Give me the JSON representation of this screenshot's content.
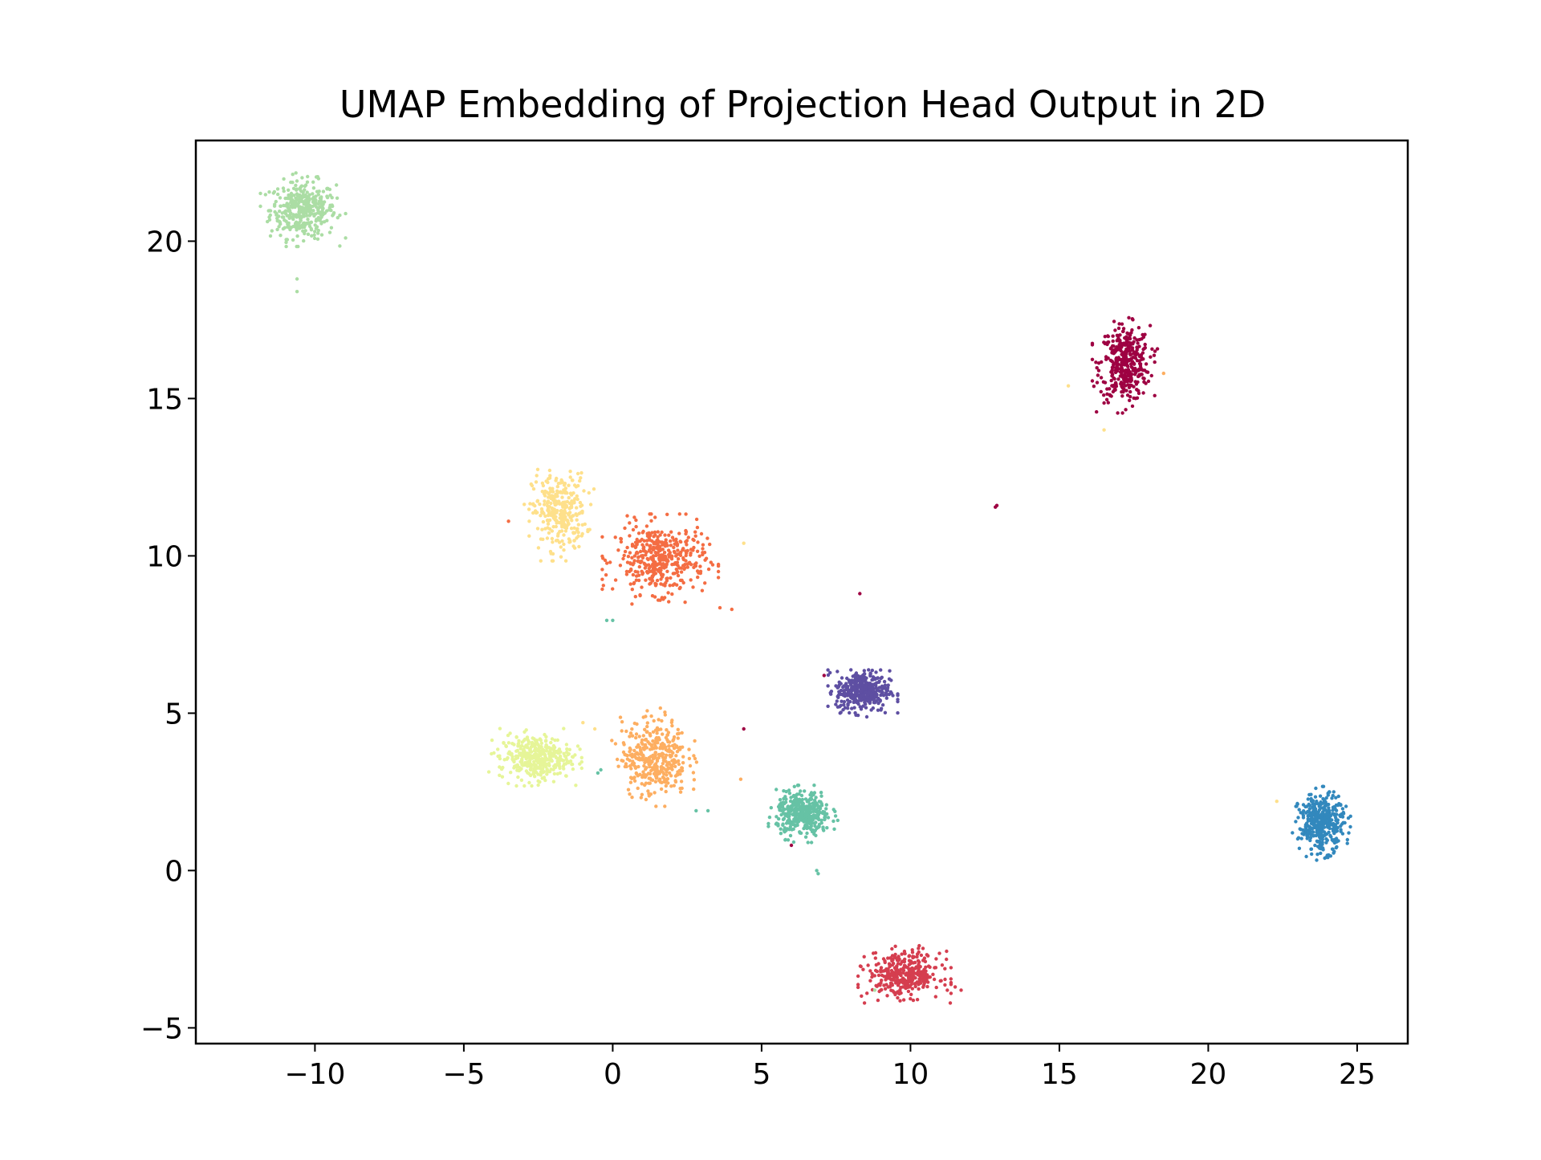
{
  "chart_data": {
    "type": "scatter",
    "title": "UMAP Embedding of Projection Head Output in 2D",
    "xlabel": "",
    "ylabel": "",
    "xlim": [
      -14,
      26.7
    ],
    "ylim": [
      -5.5,
      23.2
    ],
    "xticks": [
      -10,
      -5,
      0,
      5,
      10,
      15,
      20,
      25
    ],
    "yticks": [
      -5,
      0,
      5,
      10,
      15,
      20
    ],
    "xtick_labels": [
      "−10",
      "−5",
      "0",
      "5",
      "10",
      "15",
      "20",
      "25"
    ],
    "ytick_labels": [
      "−5",
      "0",
      "5",
      "10",
      "15",
      "20"
    ],
    "grid": false,
    "legend": "none",
    "clusters": [
      {
        "color": "#abdda4",
        "center": [
          -10.4,
          21.0
        ],
        "spread": [
          0.55,
          0.45
        ],
        "n": 380
      },
      {
        "color": "#9e0142",
        "center": [
          17.2,
          16.1
        ],
        "spread": [
          0.42,
          0.6
        ],
        "n": 380
      },
      {
        "color": "#fee08b",
        "center": [
          -1.8,
          11.4
        ],
        "spread": [
          0.45,
          0.6
        ],
        "n": 300
      },
      {
        "color": "#f46d43",
        "center": [
          1.6,
          9.9
        ],
        "spread": [
          0.75,
          0.55
        ],
        "n": 420
      },
      {
        "color": "#5e4fa2",
        "center": [
          8.4,
          5.7
        ],
        "spread": [
          0.45,
          0.32
        ],
        "n": 380
      },
      {
        "color": "#e6f598",
        "center": [
          -2.6,
          3.6
        ],
        "spread": [
          0.6,
          0.35
        ],
        "n": 380
      },
      {
        "color": "#fdae61",
        "center": [
          1.4,
          3.6
        ],
        "spread": [
          0.55,
          0.6
        ],
        "n": 380
      },
      {
        "color": "#66c2a5",
        "center": [
          6.4,
          1.8
        ],
        "spread": [
          0.45,
          0.35
        ],
        "n": 380
      },
      {
        "color": "#d53e4f",
        "center": [
          9.8,
          -3.3
        ],
        "spread": [
          0.6,
          0.35
        ],
        "n": 360
      },
      {
        "color": "#3288bd",
        "center": [
          23.8,
          1.5
        ],
        "spread": [
          0.38,
          0.45
        ],
        "n": 380
      }
    ],
    "outliers": [
      {
        "x": 12.9,
        "y": 11.6,
        "color": "#9e0142"
      },
      {
        "x": 12.85,
        "y": 11.55,
        "color": "#9e0142"
      },
      {
        "x": 8.3,
        "y": 8.8,
        "color": "#9e0142"
      },
      {
        "x": 15.3,
        "y": 15.4,
        "color": "#fee08b"
      },
      {
        "x": 16.5,
        "y": 14.0,
        "color": "#fee08b"
      },
      {
        "x": 22.3,
        "y": 2.2,
        "color": "#fee08b"
      },
      {
        "x": 4.4,
        "y": 10.4,
        "color": "#fee08b"
      },
      {
        "x": 4.0,
        "y": 8.3,
        "color": "#f46d43"
      },
      {
        "x": 3.6,
        "y": 8.35,
        "color": "#f46d43"
      },
      {
        "x": 4.4,
        "y": 4.5,
        "color": "#9e0142"
      },
      {
        "x": 2.8,
        "y": 1.9,
        "color": "#66c2a5"
      },
      {
        "x": 3.2,
        "y": 1.9,
        "color": "#66c2a5"
      },
      {
        "x": 0.0,
        "y": 7.95,
        "color": "#66c2a5"
      },
      {
        "x": -0.2,
        "y": 7.95,
        "color": "#66c2a5"
      },
      {
        "x": -0.4,
        "y": 3.2,
        "color": "#66c2a5"
      },
      {
        "x": -0.5,
        "y": 3.1,
        "color": "#66c2a5"
      },
      {
        "x": -3.5,
        "y": 11.1,
        "color": "#f46d43"
      },
      {
        "x": -1.0,
        "y": 4.7,
        "color": "#fee08b"
      },
      {
        "x": -0.6,
        "y": 4.5,
        "color": "#fee08b"
      },
      {
        "x": 6.9,
        "y": -0.1,
        "color": "#66c2a5"
      },
      {
        "x": 6.85,
        "y": 0.0,
        "color": "#66c2a5"
      },
      {
        "x": -10.6,
        "y": 18.4,
        "color": "#abdda4"
      },
      {
        "x": -10.6,
        "y": 18.8,
        "color": "#abdda4"
      },
      {
        "x": 11.7,
        "y": -3.8,
        "color": "#d53e4f"
      },
      {
        "x": 11.5,
        "y": -3.7,
        "color": "#d53e4f"
      },
      {
        "x": 18.5,
        "y": 15.8,
        "color": "#fdae61"
      },
      {
        "x": 7.1,
        "y": 6.2,
        "color": "#9e0142"
      },
      {
        "x": 6.0,
        "y": 0.8,
        "color": "#9e0142"
      },
      {
        "x": 4.3,
        "y": 2.9,
        "color": "#fdae61"
      },
      {
        "x": 8.8,
        "y": -3.8,
        "color": "#abdda4"
      }
    ]
  }
}
